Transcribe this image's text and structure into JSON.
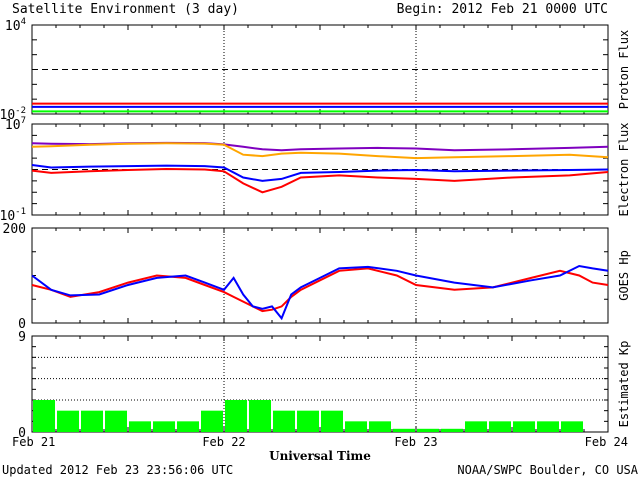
{
  "header": {
    "title": "Satellite Environment (3 day)",
    "begin": "Begin:  2012 Feb 21 0000 UTC"
  },
  "footer": {
    "updated": "Updated 2012 Feb 23 23:56:06 UTC",
    "credit": "NOAA/SWPC Boulder, CO USA"
  },
  "x_axis": {
    "label": "Universal Time",
    "ticks": [
      "Feb 21",
      "Feb 22",
      "Feb 23",
      "Feb 24"
    ]
  },
  "colors": {
    "red": "#ff0000",
    "blue": "#0000ff",
    "green": "#00ff00",
    "orange": "#ffa500",
    "purple": "#7f00bf"
  },
  "chart_data": [
    {
      "type": "line",
      "panel": "proton",
      "ylabel": "Proton Flux",
      "yscale": "log",
      "ylim": [
        0.01,
        10000
      ],
      "tick_labels": [
        {
          "base": "10",
          "exp": "4",
          "value": 10000
        },
        {
          "base": "10",
          "exp": "-2",
          "value": 0.01
        }
      ],
      "threshold": 10,
      "x": [
        0,
        0.5,
        1,
        1.5,
        2,
        2.5,
        3
      ],
      "series": [
        {
          "color": "red",
          "values": [
            0.05,
            0.05,
            0.05,
            0.05,
            0.05,
            0.05,
            0.05
          ]
        },
        {
          "color": "blue",
          "values": [
            0.03,
            0.03,
            0.03,
            0.03,
            0.03,
            0.03,
            0.03
          ]
        },
        {
          "color": "green",
          "values": [
            0.015,
            0.015,
            0.015,
            0.015,
            0.015,
            0.015,
            0.015
          ]
        }
      ]
    },
    {
      "type": "line",
      "panel": "electron",
      "ylabel": "Electron Flux",
      "yscale": "log",
      "ylim": [
        0.1,
        10000000
      ],
      "tick_labels": [
        {
          "base": "10",
          "exp": "7",
          "value": 10000000
        },
        {
          "base": "10",
          "exp": "-1",
          "value": 0.1
        }
      ],
      "threshold": 1000,
      "x": [
        0,
        0.1,
        0.3,
        0.5,
        0.7,
        0.9,
        1.0,
        1.1,
        1.2,
        1.3,
        1.4,
        1.6,
        1.8,
        2.0,
        2.2,
        2.5,
        2.8,
        3.0
      ],
      "series": [
        {
          "color": "purple",
          "values": [
            200000,
            180000,
            170000,
            200000,
            220000,
            210000,
            160000,
            100000,
            60000,
            50000,
            60000,
            70000,
            80000,
            70000,
            50000,
            60000,
            80000,
            100000
          ]
        },
        {
          "color": "orange",
          "values": [
            100000,
            110000,
            150000,
            180000,
            200000,
            190000,
            150000,
            20000,
            15000,
            25000,
            30000,
            25000,
            15000,
            10000,
            12000,
            15000,
            20000,
            12000
          ]
        },
        {
          "color": "blue",
          "values": [
            2500,
            1500,
            1800,
            2000,
            2200,
            2000,
            1500,
            200,
            100,
            150,
            500,
            600,
            800,
            900,
            700,
            800,
            900,
            1000
          ]
        },
        {
          "color": "red",
          "values": [
            800,
            500,
            700,
            900,
            1100,
            1000,
            700,
            60,
            10,
            30,
            200,
            300,
            200,
            150,
            100,
            200,
            300,
            600
          ]
        }
      ]
    },
    {
      "type": "line",
      "panel": "hp",
      "ylabel": "GOES Hp",
      "ylim": [
        0,
        200
      ],
      "tick_labels": [
        {
          "text": "200",
          "value": 200
        },
        {
          "text": "0",
          "value": 0
        }
      ],
      "x": [
        0,
        0.1,
        0.2,
        0.35,
        0.5,
        0.65,
        0.8,
        0.9,
        1.0,
        1.05,
        1.1,
        1.15,
        1.2,
        1.25,
        1.3,
        1.35,
        1.4,
        1.5,
        1.6,
        1.75,
        1.9,
        2.0,
        2.2,
        2.4,
        2.6,
        2.75,
        2.85,
        2.92,
        3.0
      ],
      "series": [
        {
          "color": "red",
          "values": [
            80,
            70,
            55,
            65,
            85,
            100,
            95,
            80,
            65,
            55,
            45,
            35,
            25,
            28,
            35,
            55,
            70,
            90,
            110,
            115,
            100,
            80,
            70,
            75,
            95,
            110,
            100,
            85,
            80
          ]
        },
        {
          "color": "blue",
          "values": [
            100,
            70,
            58,
            60,
            80,
            95,
            100,
            85,
            70,
            95,
            60,
            35,
            30,
            35,
            10,
            60,
            75,
            95,
            115,
            118,
            110,
            100,
            85,
            75,
            90,
            100,
            120,
            115,
            110
          ]
        }
      ]
    },
    {
      "type": "bar",
      "panel": "kp",
      "ylabel": "Estimated Kp",
      "ylim": [
        0,
        9
      ],
      "tick_labels": [
        {
          "text": "9",
          "value": 9
        },
        {
          "text": "0",
          "value": 0
        }
      ],
      "gridlines": [
        3,
        5,
        7
      ],
      "values": [
        3,
        2,
        2,
        2,
        1,
        1,
        1,
        2,
        3,
        3,
        2,
        2,
        2,
        1,
        1,
        0.3,
        0.3,
        0.3,
        1,
        1,
        1,
        1,
        1,
        0
      ]
    }
  ]
}
